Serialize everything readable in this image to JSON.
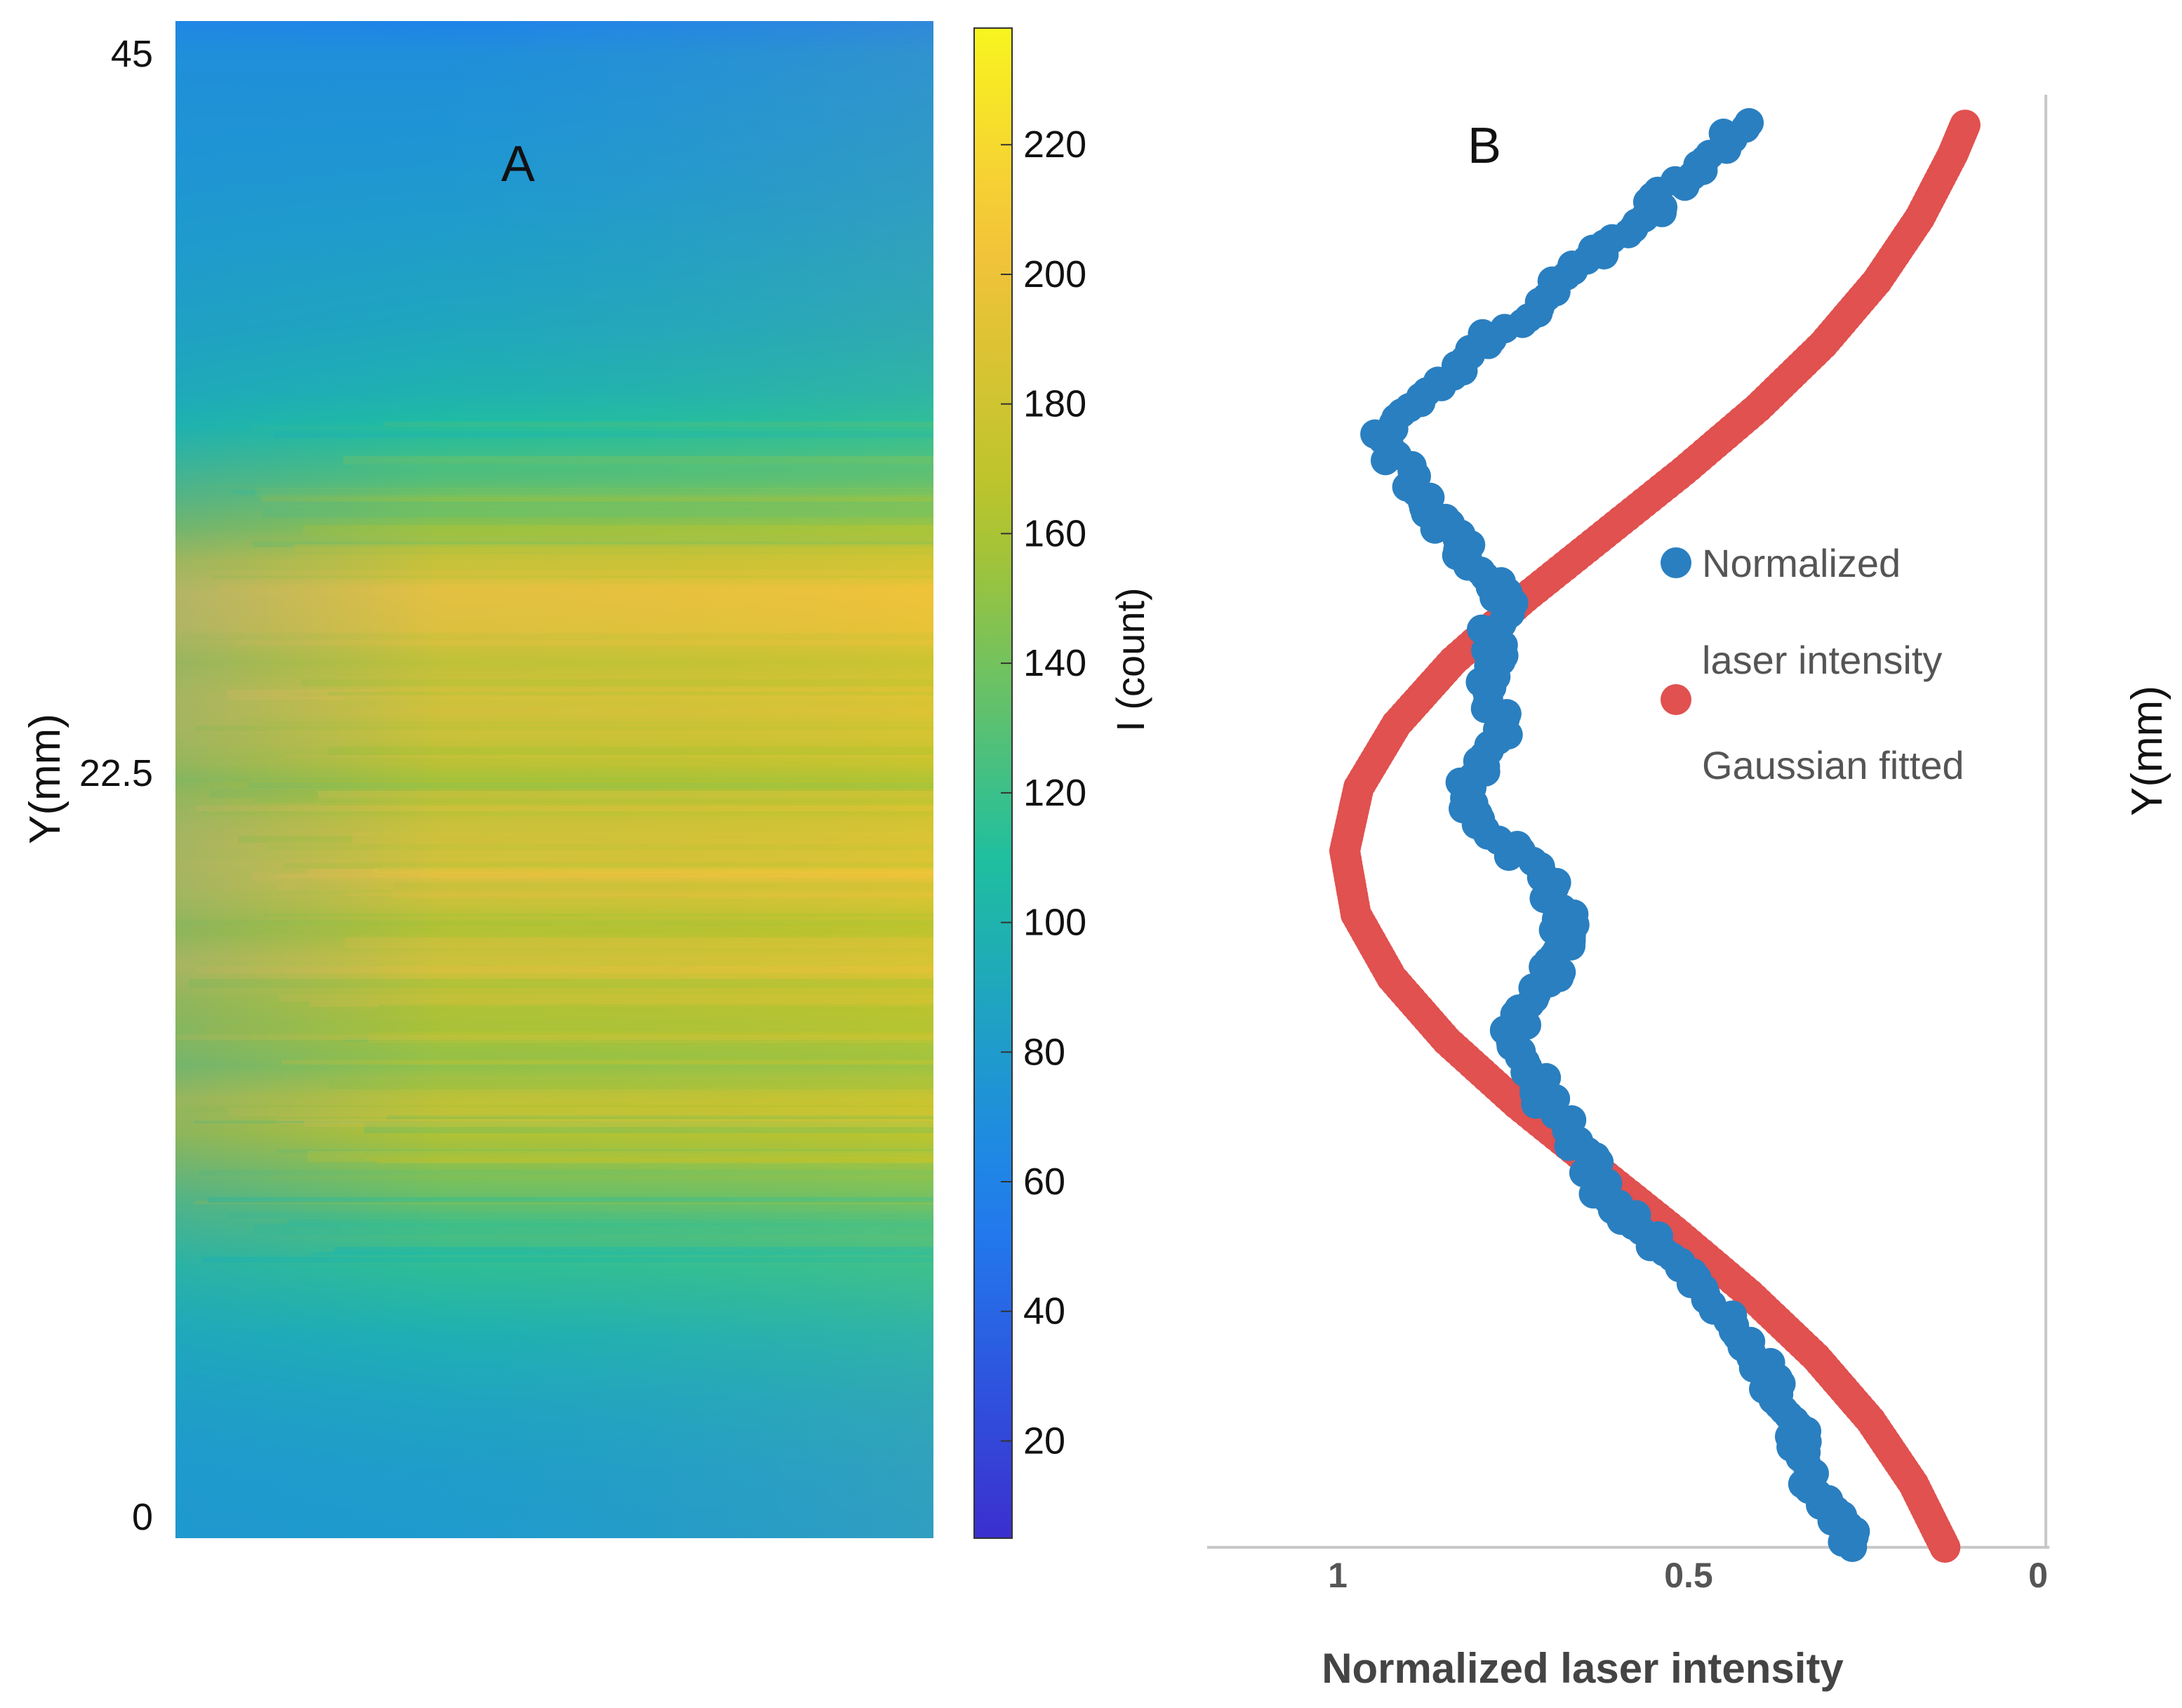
{
  "panel_a": {
    "letter": "A",
    "ylabel": "Y(mm)",
    "ytick_labels": [
      "45",
      "22.5",
      "0"
    ],
    "colorbar_label": "I (count)",
    "colorbar_tick_labels": [
      "220",
      "200",
      "180",
      "160",
      "140",
      "120",
      "100",
      "80",
      "60",
      "40",
      "20"
    ],
    "colors": {
      "low": "#3b2fcf",
      "mid_low": "#1f7fef",
      "mid": "#1fbf9f",
      "mid_high": "#b6c42a",
      "high": "#f5c33b",
      "max": "#f8f51f"
    }
  },
  "panel_b": {
    "letter": "B",
    "ylabel": "Y(mm)",
    "xlabel": "Normalized laser intensity",
    "xtick_labels": [
      "1",
      "0.5",
      "0"
    ],
    "legend": [
      {
        "label_line1": "Normalized",
        "label_line2": "laser intensity",
        "color": "#2a7fc0"
      },
      {
        "label_line1": "Gaussian fitted",
        "label_line2": "",
        "color": "#e0514f"
      }
    ]
  },
  "chart_data": [
    {
      "type": "heatmap",
      "ylabel": "Y(mm)",
      "ylim": [
        0,
        45
      ],
      "colorbar": {
        "label": "I (count)",
        "range": [
          5,
          238
        ],
        "ticks": [
          20,
          40,
          60,
          80,
          100,
          120,
          140,
          160,
          180,
          200,
          220
        ]
      },
      "row_profile": {
        "y_mm": [
          0,
          2,
          4,
          6,
          8,
          10,
          12,
          13,
          14,
          15,
          16,
          17,
          18,
          19,
          20,
          21,
          22,
          22.5,
          23,
          24,
          25,
          26,
          27,
          28,
          29,
          30,
          31,
          32,
          33,
          34,
          36,
          38,
          40,
          42,
          44,
          45
        ],
        "intensity": [
          80,
          82,
          88,
          98,
          115,
          135,
          165,
          175,
          152,
          160,
          168,
          190,
          165,
          182,
          190,
          185,
          170,
          160,
          172,
          186,
          188,
          175,
          196,
          200,
          180,
          150,
          135,
          122,
          110,
          100,
          90,
          84,
          78,
          74,
          70,
          60
        ]
      }
    },
    {
      "type": "scatter",
      "xlabel": "Normalized laser intensity",
      "ylabel": "Y(mm)",
      "xlim": [
        1.2,
        0
      ],
      "ylim": [
        0,
        45
      ],
      "series": [
        {
          "name": "Normalized laser intensity",
          "points": [
            [
              0.26,
              0
            ],
            [
              0.29,
              1
            ],
            [
              0.32,
              2
            ],
            [
              0.34,
              3
            ],
            [
              0.35,
              4
            ],
            [
              0.38,
              5
            ],
            [
              0.4,
              6
            ],
            [
              0.43,
              7
            ],
            [
              0.47,
              8
            ],
            [
              0.52,
              9
            ],
            [
              0.56,
              10
            ],
            [
              0.62,
              11
            ],
            [
              0.64,
              12
            ],
            [
              0.66,
              13
            ],
            [
              0.7,
              14
            ],
            [
              0.72,
              15
            ],
            [
              0.75,
              16
            ],
            [
              0.74,
              17
            ],
            [
              0.7,
              18
            ],
            [
              0.67,
              19
            ],
            [
              0.68,
              20
            ],
            [
              0.7,
              21
            ],
            [
              0.75,
              22
            ],
            [
              0.8,
              23
            ],
            [
              0.82,
              24
            ],
            [
              0.78,
              25
            ],
            [
              0.76,
              26
            ],
            [
              0.8,
              27
            ],
            [
              0.77,
              28
            ],
            [
              0.78,
              29
            ],
            [
              0.76,
              30
            ],
            [
              0.8,
              31
            ],
            [
              0.84,
              32
            ],
            [
              0.87,
              33
            ],
            [
              0.9,
              34
            ],
            [
              0.95,
              35
            ],
            [
              0.9,
              36
            ],
            [
              0.83,
              37
            ],
            [
              0.8,
              38
            ],
            [
              0.73,
              39
            ],
            [
              0.68,
              40
            ],
            [
              0.62,
              41
            ],
            [
              0.56,
              42
            ],
            [
              0.52,
              43
            ],
            [
              0.46,
              44
            ],
            [
              0.43,
              45
            ]
          ]
        },
        {
          "name": "Gaussian fitted",
          "points": [
            [
              0.133,
              0
            ],
            [
              0.178,
              2
            ],
            [
              0.239,
              4
            ],
            [
              0.317,
              6
            ],
            [
              0.412,
              8
            ],
            [
              0.519,
              10
            ],
            [
              0.632,
              12
            ],
            [
              0.744,
              14
            ],
            [
              0.844,
              16
            ],
            [
              0.923,
              18
            ],
            [
              0.974,
              20
            ],
            [
              0.99,
              22
            ],
            [
              0.97,
              24
            ],
            [
              0.916,
              26
            ],
            [
              0.835,
              28
            ],
            [
              0.732,
              30
            ],
            [
              0.619,
              32
            ],
            [
              0.506,
              34
            ],
            [
              0.4,
              36
            ],
            [
              0.307,
              38
            ],
            [
              0.23,
              40
            ],
            [
              0.169,
              42
            ],
            [
              0.122,
              44
            ],
            [
              0.103,
              45
            ]
          ]
        }
      ]
    }
  ]
}
